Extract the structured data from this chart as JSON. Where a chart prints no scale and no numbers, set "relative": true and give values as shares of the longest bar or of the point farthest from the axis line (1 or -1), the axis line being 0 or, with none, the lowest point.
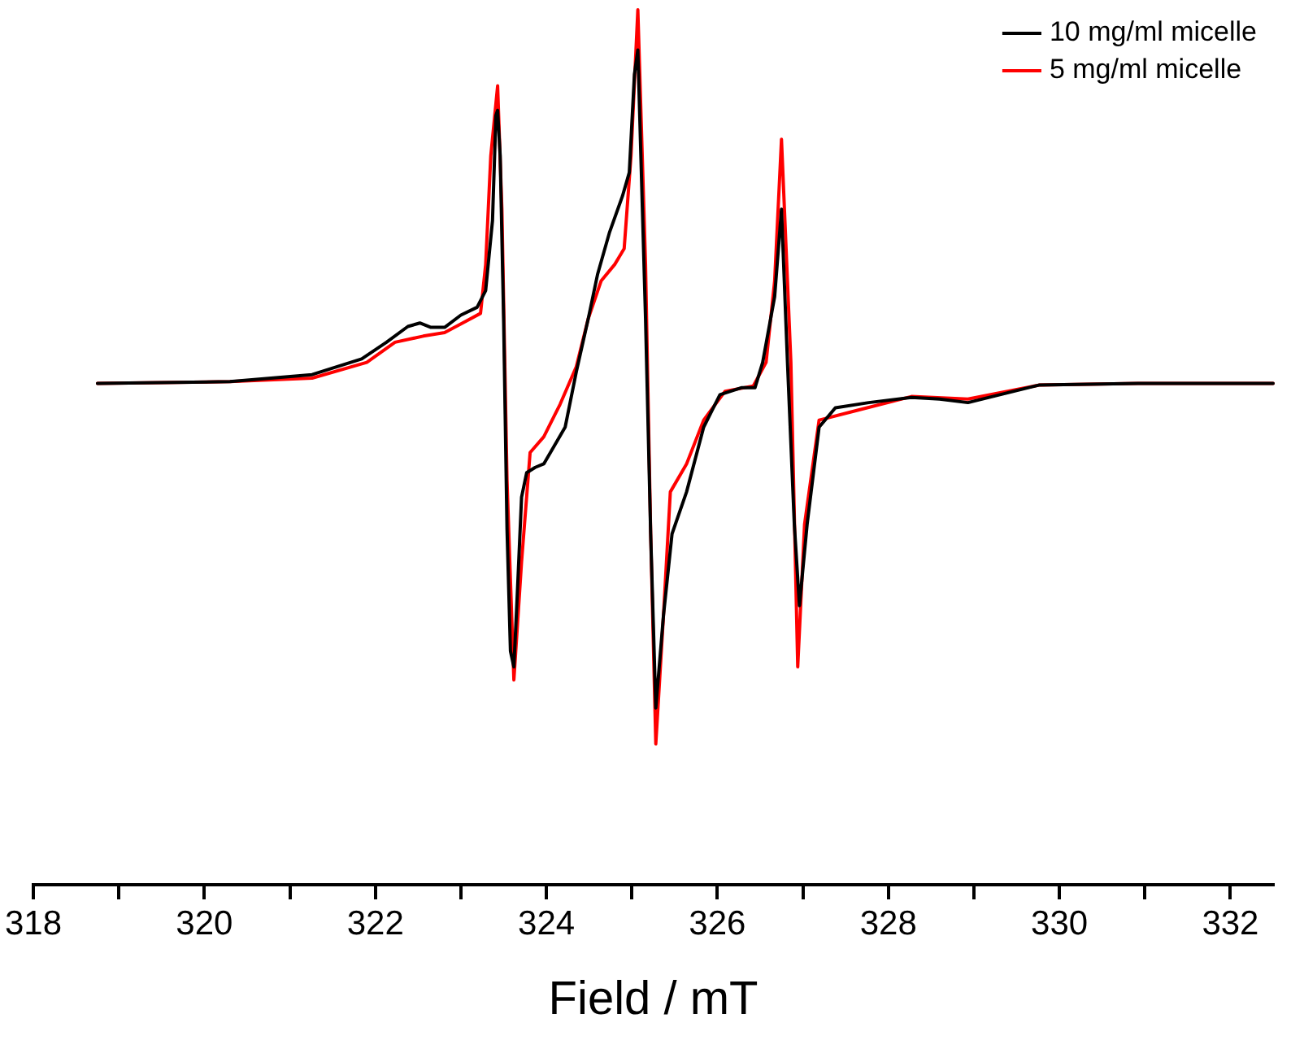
{
  "chart_data": {
    "type": "line",
    "xlabel": "Field / mT",
    "relative": true,
    "grid": false,
    "legend": "top right",
    "marker": "none",
    "line_style": "solid",
    "xlim": [
      318,
      332.5
    ],
    "xticks": [
      318,
      {
        "value": 319,
        "label": null
      },
      320,
      {
        "value": 321,
        "label": null
      },
      322,
      {
        "value": 323,
        "label": null
      },
      324,
      {
        "value": 325,
        "label": null
      },
      326,
      {
        "value": 327,
        "label": null
      },
      328,
      {
        "value": 329,
        "label": null
      },
      330,
      {
        "value": 331,
        "label": null
      },
      332
    ],
    "series": [
      {
        "name": "10 mg/ml micelle",
        "color": "#000000",
        "x": [
          318.75,
          320.3,
          321.26,
          321.84,
          322.13,
          322.38,
          322.52,
          322.65,
          322.81,
          323.0,
          323.19,
          323.29,
          323.37,
          323.41,
          323.43,
          323.46,
          323.5,
          323.54,
          323.58,
          323.62,
          323.66,
          323.71,
          323.77,
          323.87,
          323.97,
          324.22,
          324.35,
          324.49,
          324.6,
          324.74,
          324.89,
          324.97,
          325.03,
          325.07,
          325.16,
          325.22,
          325.28,
          325.37,
          325.47,
          325.64,
          325.84,
          326.03,
          326.28,
          326.44,
          326.53,
          326.67,
          326.75,
          326.82,
          326.9,
          326.96,
          327.05,
          327.19,
          327.38,
          327.77,
          328.27,
          328.6,
          328.93,
          329.76,
          330.92,
          332.5
        ],
        "values": [
          0.573,
          0.575,
          0.583,
          0.601,
          0.62,
          0.638,
          0.642,
          0.637,
          0.637,
          0.651,
          0.66,
          0.679,
          0.759,
          0.879,
          0.885,
          0.833,
          0.647,
          0.406,
          0.267,
          0.249,
          0.332,
          0.443,
          0.471,
          0.477,
          0.481,
          0.523,
          0.586,
          0.647,
          0.698,
          0.746,
          0.787,
          0.814,
          0.926,
          0.954,
          0.647,
          0.401,
          0.202,
          0.308,
          0.401,
          0.449,
          0.523,
          0.56,
          0.568,
          0.568,
          0.597,
          0.672,
          0.772,
          0.597,
          0.412,
          0.319,
          0.412,
          0.523,
          0.545,
          0.551,
          0.557,
          0.555,
          0.551,
          0.571,
          0.573,
          0.573
        ]
      },
      {
        "name": "5 mg/ml micelle",
        "color": "#ff0000",
        "x": [
          318.75,
          320.3,
          321.26,
          321.9,
          322.23,
          322.56,
          322.81,
          323.06,
          323.23,
          323.29,
          323.35,
          323.43,
          323.48,
          323.54,
          323.62,
          323.71,
          323.81,
          323.97,
          324.16,
          324.35,
          324.49,
          324.64,
          324.8,
          324.91,
          324.99,
          325.07,
          325.16,
          325.22,
          325.28,
          325.37,
          325.45,
          325.64,
          325.84,
          326.09,
          326.42,
          326.57,
          326.67,
          326.75,
          326.86,
          326.94,
          327.02,
          327.19,
          327.63,
          328.27,
          328.93,
          329.76,
          330.92,
          332.5
        ],
        "values": [
          0.573,
          0.575,
          0.579,
          0.597,
          0.62,
          0.627,
          0.631,
          0.644,
          0.653,
          0.709,
          0.833,
          0.913,
          0.772,
          0.462,
          0.234,
          0.369,
          0.494,
          0.512,
          0.549,
          0.592,
          0.647,
          0.69,
          0.709,
          0.727,
          0.833,
          1.0,
          0.709,
          0.401,
          0.161,
          0.308,
          0.449,
          0.481,
          0.531,
          0.564,
          0.57,
          0.597,
          0.69,
          0.852,
          0.597,
          0.249,
          0.412,
          0.531,
          0.542,
          0.558,
          0.555,
          0.571,
          0.573,
          0.573
        ]
      }
    ]
  }
}
